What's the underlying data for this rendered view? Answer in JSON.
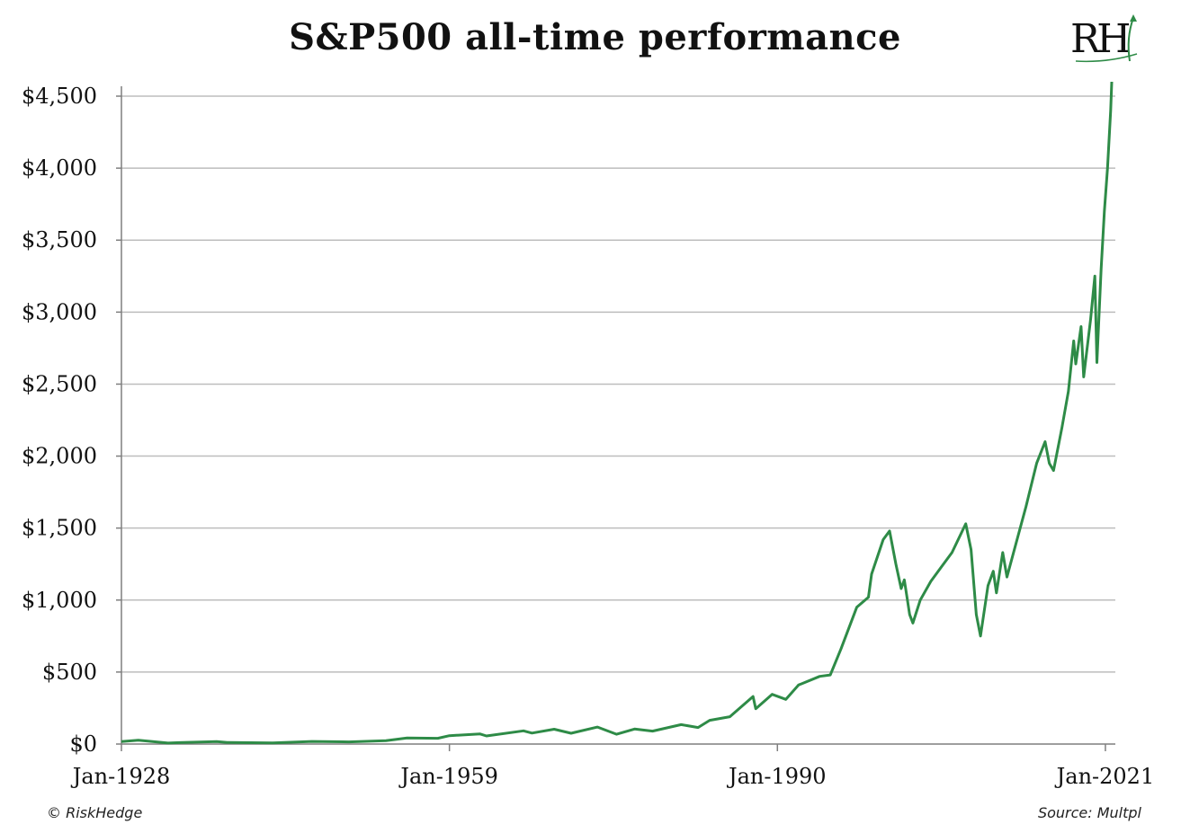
{
  "chart_data": {
    "type": "line",
    "title": "S&P500 all-time performance",
    "ylim": [
      0,
      4600
    ],
    "y_ticks": [
      0,
      500,
      1000,
      1500,
      2000,
      2500,
      3000,
      3500,
      4000,
      4500
    ],
    "y_tick_labels": [
      "$0",
      "$500",
      "$1,000",
      "$1,500",
      "$2,000",
      "$2,500",
      "$3,000",
      "$3,500",
      "$4,000",
      "$4,500"
    ],
    "x_ticks": [
      1928,
      1959,
      1990,
      2021
    ],
    "x_tick_labels": [
      "Jan-1928",
      "Jan-1959",
      "Jan-1990",
      "Jan-2021"
    ],
    "xlim": [
      1928,
      2021.6
    ],
    "grid": true,
    "series": [
      {
        "color": "#2e8b47",
        "points": [
          [
            1928.0,
            17
          ],
          [
            1929.6,
            27
          ],
          [
            1930.5,
            20
          ],
          [
            1932.4,
            7
          ],
          [
            1933.5,
            10
          ],
          [
            1937.0,
            17
          ],
          [
            1938.0,
            11
          ],
          [
            1942.3,
            8
          ],
          [
            1946.0,
            18
          ],
          [
            1949.5,
            15
          ],
          [
            1953.0,
            24
          ],
          [
            1955.0,
            42
          ],
          [
            1957.9,
            40
          ],
          [
            1959.0,
            58
          ],
          [
            1961.9,
            70
          ],
          [
            1962.5,
            56
          ],
          [
            1966.0,
            92
          ],
          [
            1966.8,
            76
          ],
          [
            1968.9,
            103
          ],
          [
            1970.5,
            75
          ],
          [
            1973.0,
            118
          ],
          [
            1974.8,
            68
          ],
          [
            1976.5,
            104
          ],
          [
            1978.2,
            90
          ],
          [
            1980.9,
            135
          ],
          [
            1982.5,
            115
          ],
          [
            1983.6,
            165
          ],
          [
            1985.5,
            190
          ],
          [
            1987.7,
            330
          ],
          [
            1987.95,
            245
          ],
          [
            1989.5,
            345
          ],
          [
            1990.8,
            310
          ],
          [
            1992.0,
            410
          ],
          [
            1994.0,
            470
          ],
          [
            1995.0,
            480
          ],
          [
            1996.0,
            660
          ],
          [
            1997.5,
            950
          ],
          [
            1998.6,
            1020
          ],
          [
            1998.9,
            1180
          ],
          [
            2000.0,
            1420
          ],
          [
            2000.6,
            1480
          ],
          [
            2001.2,
            1250
          ],
          [
            2001.7,
            1080
          ],
          [
            2002.0,
            1140
          ],
          [
            2002.5,
            900
          ],
          [
            2002.8,
            840
          ],
          [
            2003.5,
            1000
          ],
          [
            2004.5,
            1130
          ],
          [
            2005.5,
            1230
          ],
          [
            2006.5,
            1330
          ],
          [
            2007.8,
            1530
          ],
          [
            2008.3,
            1350
          ],
          [
            2008.8,
            900
          ],
          [
            2009.2,
            750
          ],
          [
            2009.9,
            1100
          ],
          [
            2010.4,
            1200
          ],
          [
            2010.7,
            1050
          ],
          [
            2011.3,
            1330
          ],
          [
            2011.7,
            1160
          ],
          [
            2012.5,
            1380
          ],
          [
            2013.5,
            1650
          ],
          [
            2014.5,
            1950
          ],
          [
            2015.3,
            2100
          ],
          [
            2015.7,
            1950
          ],
          [
            2016.1,
            1900
          ],
          [
            2016.9,
            2200
          ],
          [
            2017.5,
            2450
          ],
          [
            2018.0,
            2800
          ],
          [
            2018.2,
            2640
          ],
          [
            2018.7,
            2900
          ],
          [
            2018.95,
            2550
          ],
          [
            2019.6,
            2950
          ],
          [
            2020.0,
            3250
          ],
          [
            2020.2,
            2650
          ],
          [
            2020.6,
            3300
          ],
          [
            2020.9,
            3700
          ],
          [
            2021.2,
            4000
          ],
          [
            2021.5,
            4400
          ],
          [
            2021.6,
            4600
          ]
        ]
      }
    ]
  },
  "credits": {
    "left": "© RiskHedge",
    "right": "Source: Multpl"
  },
  "logo": {
    "text": "RH"
  }
}
